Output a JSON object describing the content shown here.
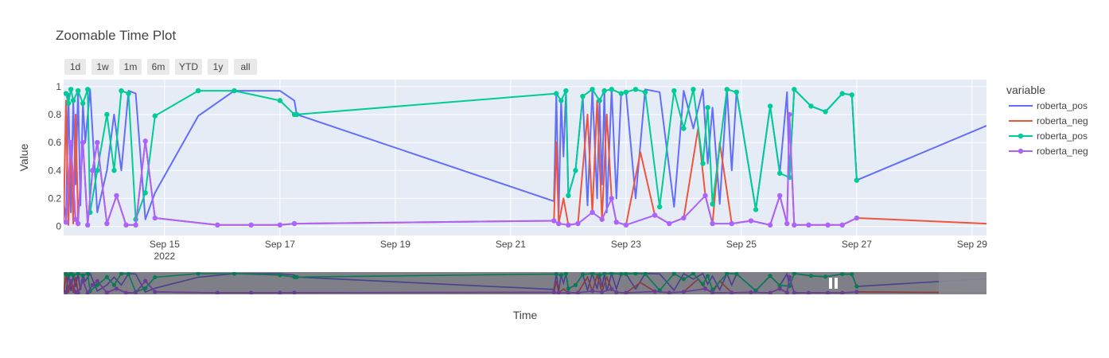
{
  "chart_data": {
    "type": "line",
    "title": "Zoomable Time Plot",
    "xlabel": "Time",
    "ylabel": "Value",
    "ylim": [
      -0.065,
      1.05
    ],
    "xlim": [
      "2022-09-13T06:00",
      "2022-09-29T06:00"
    ],
    "x_ticks": [
      {
        "label": "Sep 15",
        "sublabel": "2022",
        "value": "2022-09-15T00:00"
      },
      {
        "label": "Sep 17",
        "sublabel": "",
        "value": "2022-09-17T00:00"
      },
      {
        "label": "Sep 19",
        "sublabel": "",
        "value": "2022-09-19T00:00"
      },
      {
        "label": "Sep 21",
        "sublabel": "",
        "value": "2022-09-21T00:00"
      },
      {
        "label": "Sep 23",
        "sublabel": "",
        "value": "2022-09-23T00:00"
      },
      {
        "label": "Sep 25",
        "sublabel": "",
        "value": "2022-09-25T00:00"
      },
      {
        "label": "Sep 27",
        "sublabel": "",
        "value": "2022-09-27T00:00"
      },
      {
        "label": "Sep 29",
        "sublabel": "",
        "value": "2022-09-29T00:00"
      }
    ],
    "y_ticks": [
      0,
      0.2,
      0.4,
      0.6,
      0.8,
      1
    ],
    "grid": true,
    "legend_title": "variable",
    "legend_placement": "right",
    "range_selector": [
      "1d",
      "1w",
      "1m",
      "6m",
      "YTD",
      "1y",
      "all"
    ],
    "range_slider": true,
    "series": [
      {
        "name": "roberta_pos",
        "mode": "lines",
        "color": "#636efa",
        "x": [
          "2022-09-13T06:00",
          "2022-09-13T07:00",
          "2022-09-13T08:00",
          "2022-09-13T09:00",
          "2022-09-13T10:00",
          "2022-09-13T11:00",
          "2022-09-13T12:00",
          "2022-09-13T13:00",
          "2022-09-13T14:00",
          "2022-09-13T15:00",
          "2022-09-13T17:00",
          "2022-09-13T20:00",
          "2022-09-14T00:00",
          "2022-09-14T03:00",
          "2022-09-14T06:00",
          "2022-09-14T09:00",
          "2022-09-14T12:00",
          "2022-09-14T16:00",
          "2022-09-14T20:00",
          "2022-09-15T14:00",
          "2022-09-16T05:00",
          "2022-09-17T00:00",
          "2022-09-17T06:00",
          "2022-09-17T07:00",
          "2022-09-21T18:00",
          "2022-09-21T19:00",
          "2022-09-21T20:00",
          "2022-09-21T21:00",
          "2022-09-21T22:00",
          "2022-09-21T23:00",
          "2022-09-22T00:00",
          "2022-09-22T03:00",
          "2022-09-22T06:00",
          "2022-09-22T08:00",
          "2022-09-22T10:00",
          "2022-09-22T12:00",
          "2022-09-22T13:00",
          "2022-09-22T14:00",
          "2022-09-22T15:00",
          "2022-09-22T16:00",
          "2022-09-22T18:00",
          "2022-09-22T20:00",
          "2022-09-22T22:00",
          "2022-09-23T00:00",
          "2022-09-23T04:00",
          "2022-09-23T08:00",
          "2022-09-23T14:00",
          "2022-09-23T20:00",
          "2022-09-24T00:00",
          "2022-09-24T04:00",
          "2022-09-24T08:00",
          "2022-09-24T10:00",
          "2022-09-24T12:00",
          "2022-09-24T15:00",
          "2022-09-24T18:00",
          "2022-09-24T20:00",
          "2022-09-24T22:00",
          "2022-09-25T06:00",
          "2022-09-25T12:00",
          "2022-09-25T16:00",
          "2022-09-25T19:00",
          "2022-09-25T20:00",
          "2022-09-25T22:00",
          "2022-09-26T05:00",
          "2022-09-26T11:00",
          "2022-09-26T18:00",
          "2022-09-26T22:00",
          "2022-09-27T00:00",
          "2022-09-29T06:00"
        ],
        "y": [
          0.17,
          0.05,
          0.95,
          0.1,
          0.9,
          0.3,
          0.98,
          0.15,
          0.88,
          0.6,
          0.98,
          0.1,
          0.4,
          0.8,
          0.4,
          0.97,
          0.95,
          0.05,
          0.24,
          0.79,
          0.97,
          0.97,
          0.9,
          0.8,
          0.18,
          0.95,
          0.1,
          0.9,
          0.5,
          0.97,
          0.22,
          0.4,
          0.93,
          0.15,
          0.98,
          0.2,
          0.9,
          0.3,
          0.97,
          0.1,
          0.98,
          0.2,
          0.95,
          0.96,
          0.2,
          0.98,
          0.96,
          0.14,
          0.97,
          0.7,
          0.98,
          0.45,
          0.85,
          0.16,
          0.98,
          0.4,
          0.96,
          0.12,
          0.86,
          0.38,
          0.96,
          0.35,
          0.98,
          0.86,
          0.82,
          0.95,
          0.94,
          0.33,
          0.72
        ]
      },
      {
        "name": "roberta_neg",
        "mode": "lines",
        "color": "#ef553b",
        "x": [
          "2022-09-13T06:00",
          "2022-09-13T07:00",
          "2022-09-13T08:00",
          "2022-09-13T09:00",
          "2022-09-13T10:00",
          "2022-09-13T11:00",
          "2022-09-13T12:00",
          "2022-09-13T14:00",
          "2022-09-13T16:00",
          "2022-09-13T18:00",
          "2022-09-13T20:00",
          "2022-09-14T00:00",
          "2022-09-14T04:00",
          "2022-09-14T08:00",
          "2022-09-14T12:00",
          "2022-09-14T16:00",
          "2022-09-14T20:00",
          "2022-09-15T22:00",
          "2022-09-16T12:00",
          "2022-09-17T00:00",
          "2022-09-17T06:00",
          "2022-09-21T18:00",
          "2022-09-21T19:00",
          "2022-09-21T20:00",
          "2022-09-21T22:00",
          "2022-09-22T00:00",
          "2022-09-22T04:00",
          "2022-09-22T08:00",
          "2022-09-22T10:00",
          "2022-09-22T12:00",
          "2022-09-22T14:00",
          "2022-09-22T16:00",
          "2022-09-22T18:00",
          "2022-09-22T20:00",
          "2022-09-23T00:00",
          "2022-09-23T06:00",
          "2022-09-23T12:00",
          "2022-09-23T18:00",
          "2022-09-24T00:00",
          "2022-09-24T06:00",
          "2022-09-24T09:00",
          "2022-09-24T12:00",
          "2022-09-24T15:00",
          "2022-09-24T20:00",
          "2022-09-25T04:00",
          "2022-09-25T12:00",
          "2022-09-25T16:00",
          "2022-09-25T19:00",
          "2022-09-25T20:00",
          "2022-09-25T22:00",
          "2022-09-26T04:00",
          "2022-09-26T12:00",
          "2022-09-26T18:00",
          "2022-09-27T00:00",
          "2022-09-29T06:00"
        ],
        "y": [
          0.03,
          0.9,
          0.01,
          0.6,
          0.02,
          0.8,
          0.05,
          0.6,
          0.01,
          0.4,
          0.6,
          0.02,
          0.22,
          0.01,
          0.01,
          0.61,
          0.06,
          0.01,
          0.01,
          0.01,
          0.02,
          0.04,
          0.6,
          0.02,
          0.2,
          0.01,
          0.02,
          0.8,
          0.1,
          0.9,
          0.05,
          0.8,
          0.2,
          0.03,
          0.01,
          0.53,
          0.08,
          0.02,
          0.06,
          0.7,
          0.22,
          0.02,
          0.6,
          0.02,
          0.04,
          0.01,
          0.22,
          0.02,
          0.8,
          0.01,
          0.01,
          0.01,
          0.01,
          0.06,
          0.02
        ]
      },
      {
        "name": "roberta_pos",
        "mode": "lines+markers",
        "color": "#00cc96",
        "x": [
          "2022-09-13T07:00",
          "2022-09-13T08:00",
          "2022-09-13T09:00",
          "2022-09-13T10:00",
          "2022-09-13T12:00",
          "2022-09-13T14:00",
          "2022-09-13T16:00",
          "2022-09-13T17:00",
          "2022-09-13T20:00",
          "2022-09-14T00:00",
          "2022-09-14T03:00",
          "2022-09-14T06:00",
          "2022-09-14T09:00",
          "2022-09-14T12:00",
          "2022-09-14T16:00",
          "2022-09-14T20:00",
          "2022-09-15T14:00",
          "2022-09-16T05:00",
          "2022-09-17T00:00",
          "2022-09-17T06:00",
          "2022-09-17T07:00",
          "2022-09-21T19:00",
          "2022-09-21T21:00",
          "2022-09-21T23:00",
          "2022-09-22T00:00",
          "2022-09-22T03:00",
          "2022-09-22T06:00",
          "2022-09-22T10:00",
          "2022-09-22T13:00",
          "2022-09-22T15:00",
          "2022-09-22T18:00",
          "2022-09-22T22:00",
          "2022-09-23T00:00",
          "2022-09-23T04:00",
          "2022-09-23T08:00",
          "2022-09-23T14:00",
          "2022-09-23T20:00",
          "2022-09-24T00:00",
          "2022-09-24T04:00",
          "2022-09-24T08:00",
          "2022-09-24T10:00",
          "2022-09-24T12:00",
          "2022-09-24T18:00",
          "2022-09-24T22:00",
          "2022-09-25T06:00",
          "2022-09-25T12:00",
          "2022-09-25T16:00",
          "2022-09-25T20:00",
          "2022-09-25T22:00",
          "2022-09-26T05:00",
          "2022-09-26T11:00",
          "2022-09-26T18:00",
          "2022-09-26T22:00",
          "2022-09-27T00:00"
        ],
        "y": [
          0.95,
          0.88,
          0.98,
          0.9,
          0.97,
          0.88,
          0.98,
          0.1,
          0.4,
          0.8,
          0.4,
          0.97,
          0.95,
          0.05,
          0.24,
          0.79,
          0.97,
          0.97,
          0.9,
          0.8,
          0.8,
          0.95,
          0.9,
          0.97,
          0.22,
          0.4,
          0.93,
          0.98,
          0.9,
          0.97,
          0.98,
          0.95,
          0.96,
          0.98,
          0.96,
          0.14,
          0.97,
          0.7,
          0.98,
          0.45,
          0.85,
          0.16,
          0.98,
          0.96,
          0.12,
          0.86,
          0.38,
          0.35,
          0.98,
          0.86,
          0.82,
          0.95,
          0.94,
          0.33
        ]
      },
      {
        "name": "roberta_neg",
        "mode": "lines+markers",
        "color": "#ab63fa",
        "x": [
          "2022-09-13T07:00",
          "2022-09-13T09:00",
          "2022-09-13T11:00",
          "2022-09-13T12:00",
          "2022-09-13T14:00",
          "2022-09-13T16:00",
          "2022-09-13T18:00",
          "2022-09-13T20:00",
          "2022-09-14T00:00",
          "2022-09-14T04:00",
          "2022-09-14T08:00",
          "2022-09-14T12:00",
          "2022-09-14T16:00",
          "2022-09-14T20:00",
          "2022-09-15T22:00",
          "2022-09-16T12:00",
          "2022-09-17T00:00",
          "2022-09-17T06:00",
          "2022-09-21T18:00",
          "2022-09-21T20:00",
          "2022-09-22T00:00",
          "2022-09-22T04:00",
          "2022-09-22T10:00",
          "2022-09-22T14:00",
          "2022-09-22T18:00",
          "2022-09-22T20:00",
          "2022-09-23T00:00",
          "2022-09-23T12:00",
          "2022-09-23T18:00",
          "2022-09-24T00:00",
          "2022-09-24T09:00",
          "2022-09-24T12:00",
          "2022-09-24T20:00",
          "2022-09-25T04:00",
          "2022-09-25T12:00",
          "2022-09-25T16:00",
          "2022-09-25T19:00",
          "2022-09-25T20:00",
          "2022-09-25T22:00",
          "2022-09-26T04:00",
          "2022-09-26T12:00",
          "2022-09-26T18:00",
          "2022-09-27T00:00"
        ],
        "y": [
          0.03,
          0.6,
          0.05,
          0.02,
          0.6,
          0.01,
          0.4,
          0.6,
          0.02,
          0.22,
          0.01,
          0.01,
          0.61,
          0.06,
          0.01,
          0.01,
          0.01,
          0.02,
          0.04,
          0.02,
          0.01,
          0.02,
          0.1,
          0.05,
          0.2,
          0.03,
          0.01,
          0.08,
          0.02,
          0.06,
          0.22,
          0.02,
          0.02,
          0.04,
          0.01,
          0.22,
          0.02,
          0.8,
          0.01,
          0.01,
          0.01,
          0.01,
          0.06
        ]
      }
    ]
  }
}
